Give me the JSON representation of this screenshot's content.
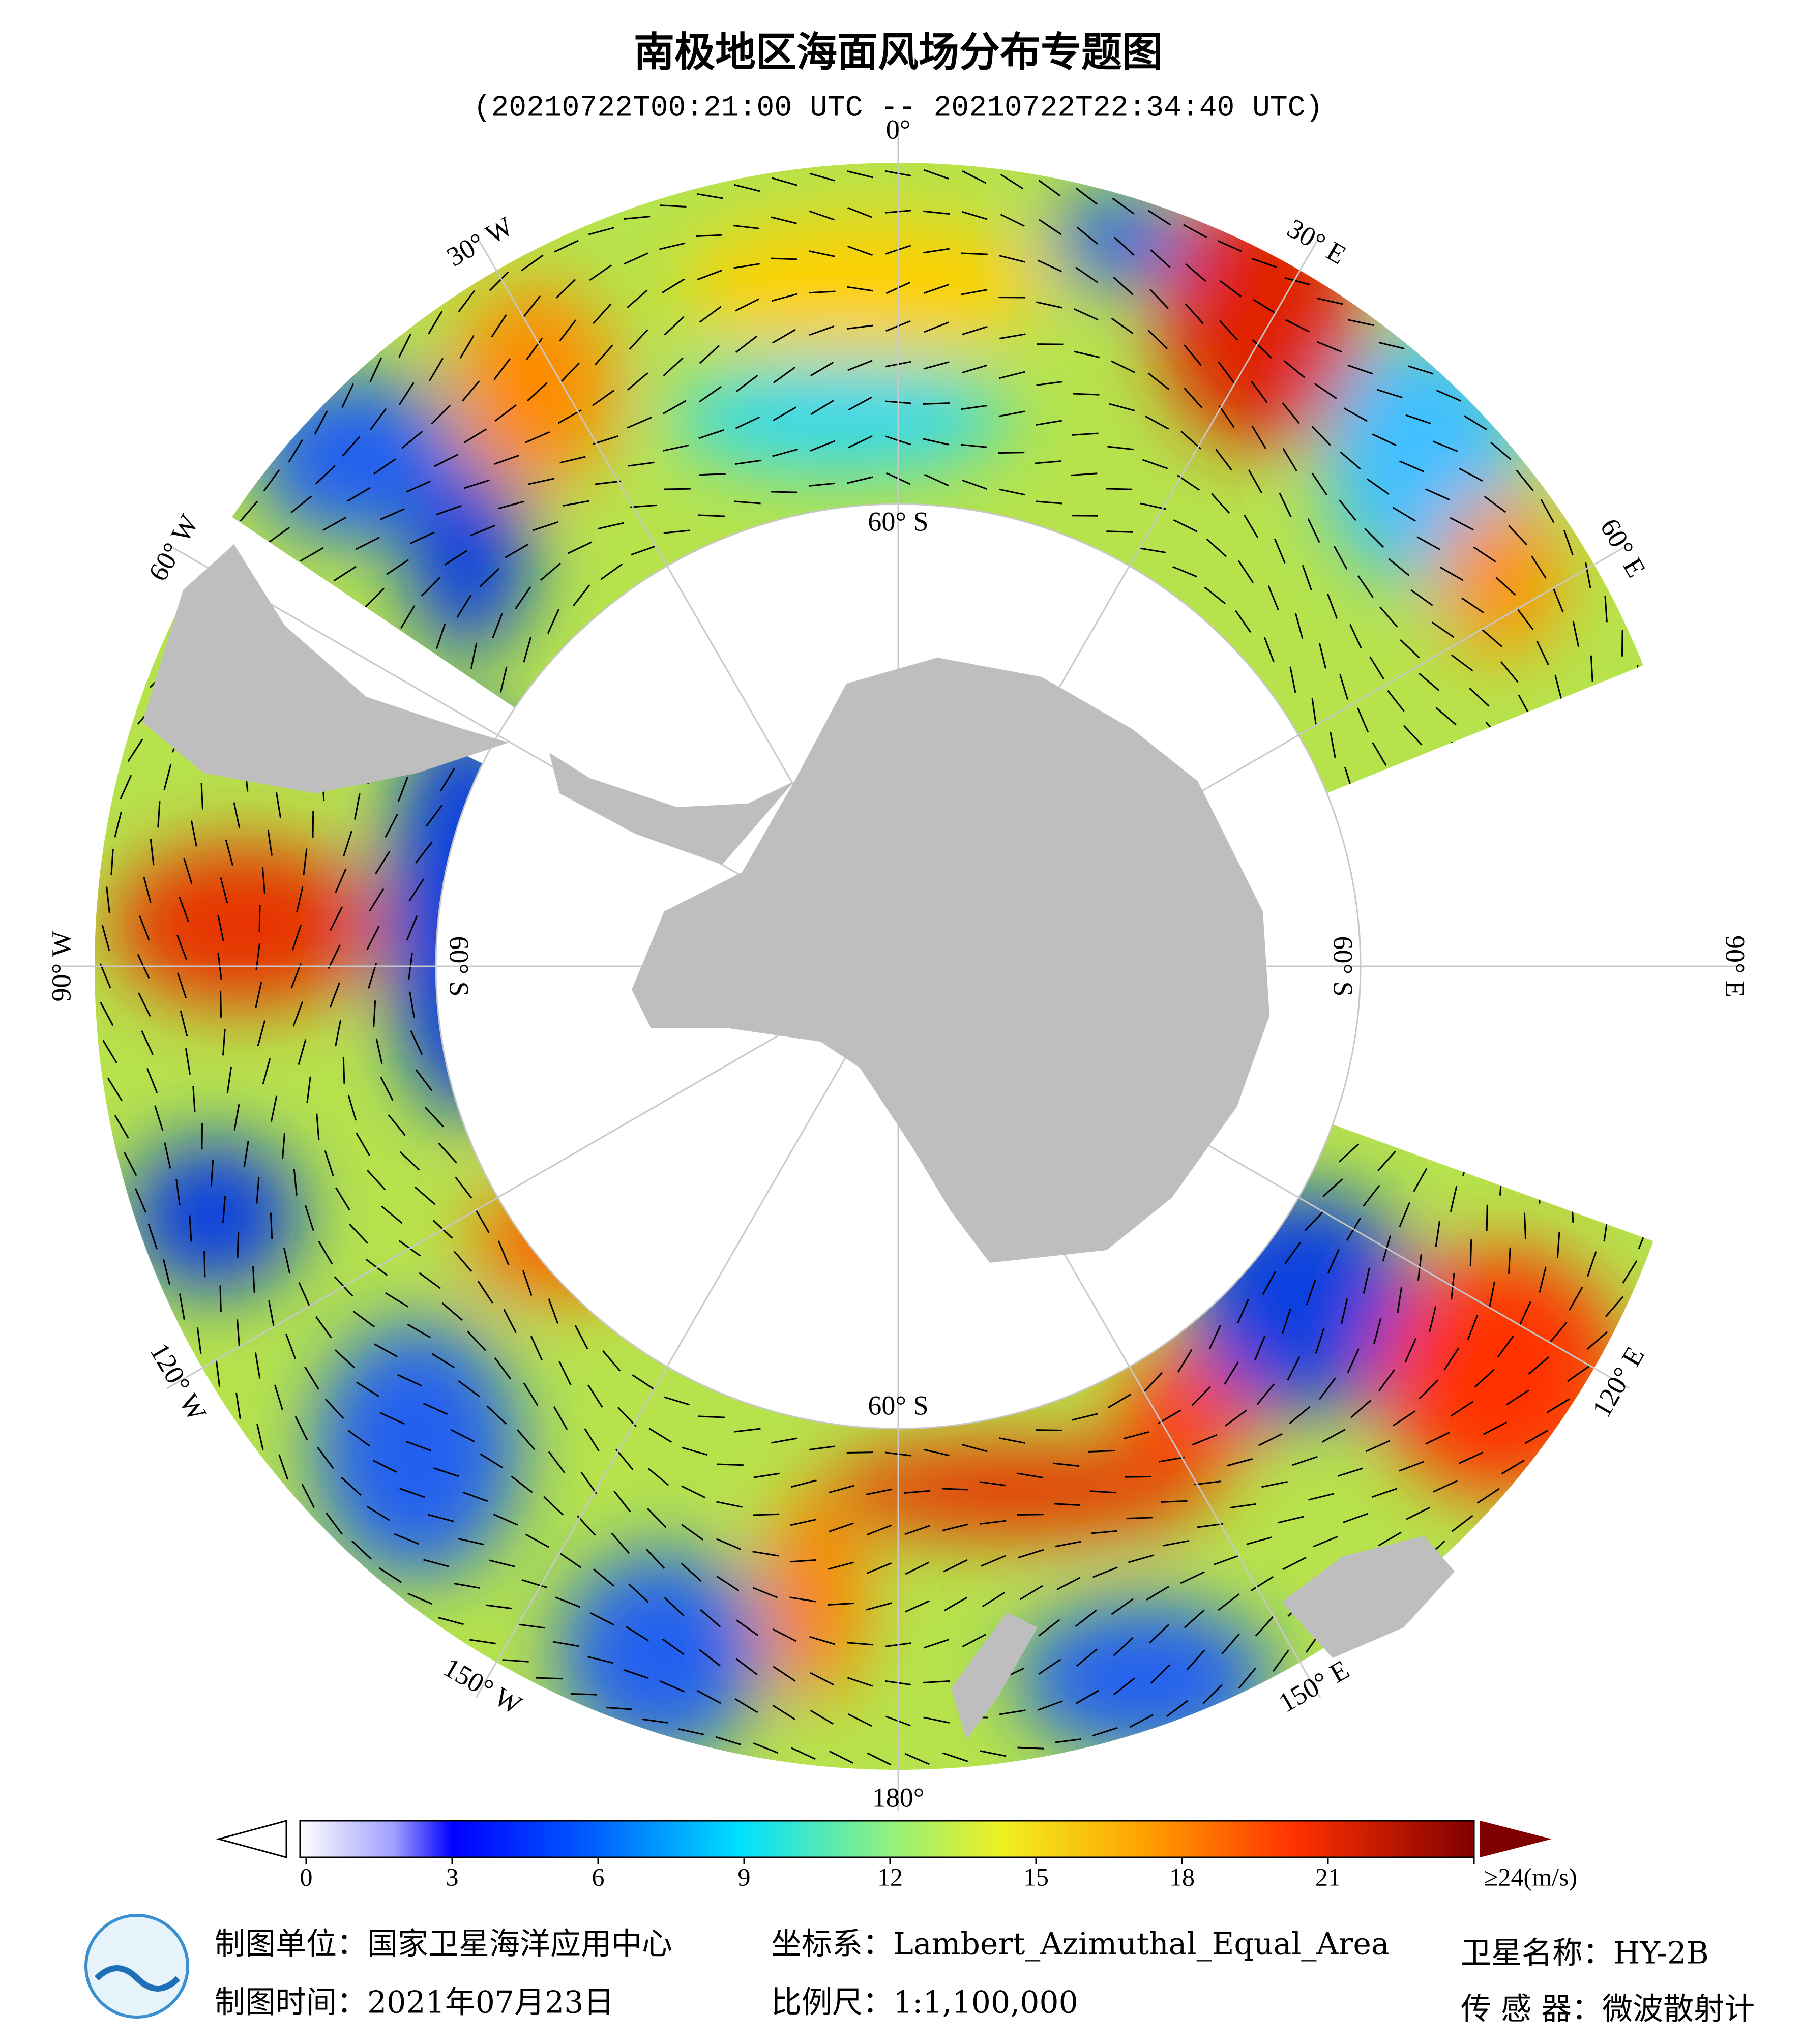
{
  "header": {
    "title": "南极地区海面风场分布专题图",
    "subtitle": "(20210722T00:21:00 UTC -- 20210722T22:34:40 UTC)"
  },
  "map": {
    "longitude_labels": [
      "0°",
      "30° E",
      "60° E",
      "90° E",
      "120° E",
      "150° E",
      "180°",
      "150° W",
      "120° W",
      "90° W",
      "60° W",
      "30° W"
    ],
    "latitude_labels": [
      "60° S",
      "60° S",
      "60° S",
      "60° S"
    ]
  },
  "colorbar": {
    "range": [
      0,
      24
    ],
    "ticks": [
      0,
      3,
      6,
      9,
      12,
      15,
      18,
      21,
      {
        "value": 24,
        "label": "≥24(m/s)"
      }
    ]
  },
  "footer": {
    "unit": "制图单位：国家卫星海洋应用中心",
    "date": "制图时间：2021年07月23日",
    "crs": "坐标系：Lambert_Azimuthal_Equal_Area",
    "scale": "比例尺：1:1,100,000",
    "satellite": "卫星名称：HY-2B",
    "sensor": "传 感 器：微波散射计"
  }
}
